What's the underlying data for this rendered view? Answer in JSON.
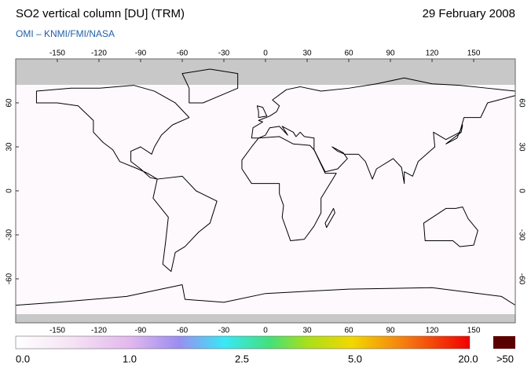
{
  "header": {
    "title": "SO2 vertical column [DU] (TRM)",
    "date": "29 February 2008",
    "subtitle": "OMI  –  KNMI/FMI/NASA"
  },
  "map": {
    "lon_ticks": [
      -150,
      -120,
      -90,
      -60,
      -30,
      0,
      30,
      60,
      90,
      120,
      150
    ],
    "lat_ticks": [
      60,
      30,
      0,
      -30,
      -60
    ]
  },
  "colorbar": {
    "labels": [
      "0.0",
      "1.0",
      "2.5",
      "5.0",
      "20.0",
      ">50"
    ]
  }
}
